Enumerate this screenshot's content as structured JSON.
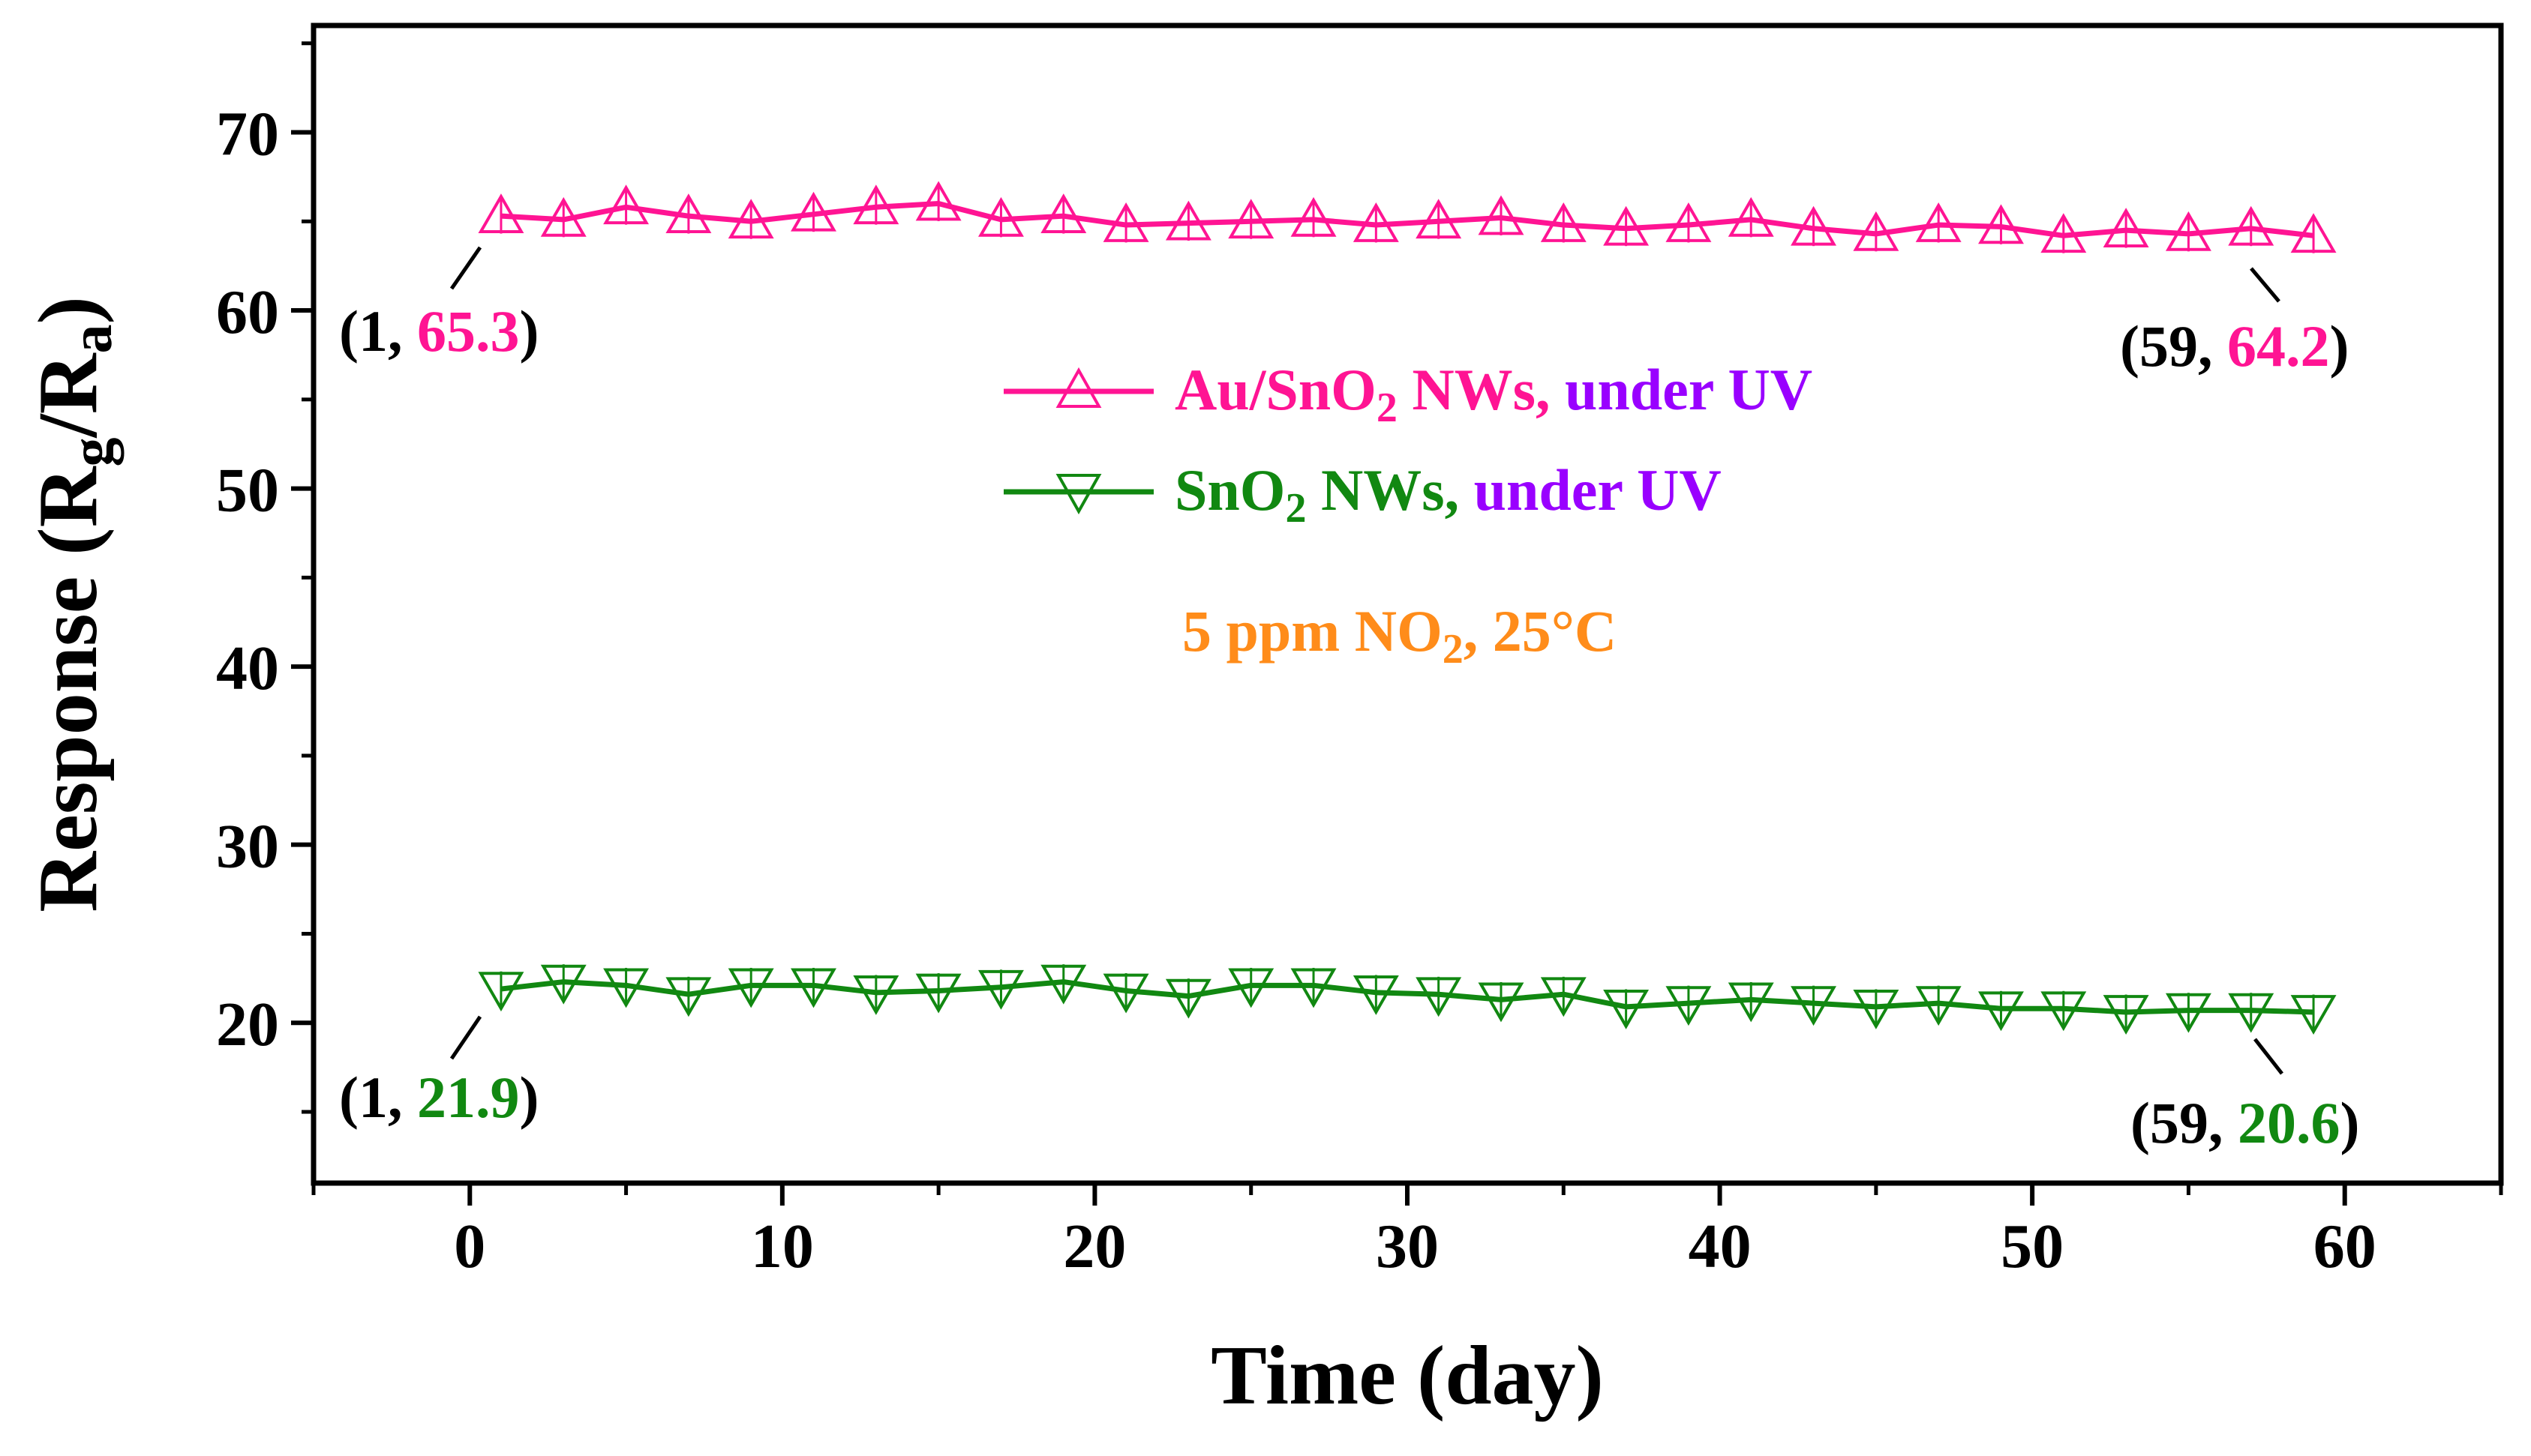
{
  "chart_data": {
    "type": "line",
    "title": "",
    "xlabel": "Time (day)",
    "ylabel": {
      "main": "Response (R",
      "sub_g": "g",
      "slash": "/R",
      "sub_a": "a",
      "close": ")"
    },
    "xlim": [
      -5,
      65
    ],
    "ylim": [
      11,
      76
    ],
    "xticks": [
      0,
      10,
      20,
      30,
      40,
      50,
      60
    ],
    "yticks": [
      20,
      30,
      40,
      50,
      60,
      70
    ],
    "x": [
      1,
      3,
      5,
      7,
      9,
      11,
      13,
      15,
      17,
      19,
      21,
      23,
      25,
      27,
      29,
      31,
      33,
      35,
      37,
      39,
      41,
      43,
      45,
      47,
      49,
      51,
      53,
      55,
      57,
      59
    ],
    "series": [
      {
        "name": "Au/SnO2 NWs, under UV",
        "marker": "triangle-up",
        "color": "#ff1493",
        "values": [
          65.3,
          65.1,
          65.8,
          65.3,
          65.0,
          65.4,
          65.8,
          66.0,
          65.1,
          65.3,
          64.8,
          64.9,
          65.0,
          65.1,
          64.8,
          65.0,
          65.2,
          64.8,
          64.6,
          64.8,
          65.1,
          64.6,
          64.3,
          64.8,
          64.7,
          64.2,
          64.5,
          64.3,
          64.6,
          64.2
        ]
      },
      {
        "name": "SnO2 NWs, under UV",
        "marker": "triangle-down",
        "color": "#118811",
        "values": [
          21.9,
          22.3,
          22.1,
          21.6,
          22.1,
          22.1,
          21.7,
          21.8,
          22.0,
          22.3,
          21.8,
          21.5,
          22.1,
          22.1,
          21.7,
          21.6,
          21.3,
          21.6,
          20.9,
          21.1,
          21.3,
          21.1,
          20.9,
          21.1,
          20.8,
          20.8,
          20.6,
          20.7,
          20.7,
          20.6
        ]
      }
    ],
    "legend": [
      {
        "prefix": "Au/SnO",
        "sub": "2",
        "mid": " NWs, ",
        "suffix": "under UV",
        "name_color": "#ff1493",
        "suffix_color": "#9900ff"
      },
      {
        "prefix": "SnO",
        "sub": "2",
        "mid": " NWs, ",
        "suffix": "under UV",
        "name_color": "#118811",
        "suffix_color": "#9900ff"
      }
    ],
    "condition": {
      "pre": "5 ppm NO",
      "sub": "2",
      "post": ", 25°C",
      "color": "#ff8c1a"
    },
    "annotations": [
      {
        "open": "(1, ",
        "value": "65.3",
        "close": ")",
        "color": "#ff1493"
      },
      {
        "open": "(59, ",
        "value": "64.2",
        "close": ")",
        "color": "#ff1493"
      },
      {
        "open": "(1, ",
        "value": "21.9",
        "close": ")",
        "color": "#118811"
      },
      {
        "open": "(59, ",
        "value": "20.6",
        "close": ")",
        "color": "#118811"
      }
    ]
  }
}
